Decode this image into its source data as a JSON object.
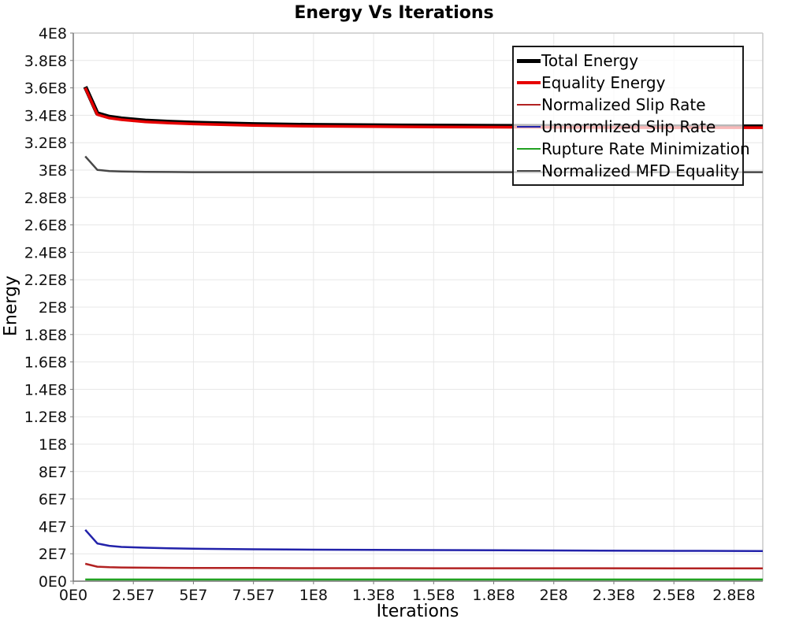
{
  "chart_data": {
    "type": "line",
    "title": "Energy Vs Iterations",
    "xlabel": "Iterations",
    "ylabel": "Energy",
    "xlim": [
      0,
      287000000.0
    ],
    "ylim": [
      0,
      400000000.0
    ],
    "grid": true,
    "legend_position": "top-right",
    "colors": {
      "background": "#ffffff",
      "gridline": "#e7e7e7",
      "axis": "#777777",
      "outer_border": "#c8c8c8",
      "legend_border": "#1a1a1a"
    },
    "x_ticks": {
      "values": [
        0,
        25000000.0,
        50000000.0,
        75000000.0,
        100000000.0,
        125000000.0,
        150000000.0,
        175000000.0,
        200000000.0,
        225000000.0,
        250000000.0,
        275000000.0
      ],
      "labels": [
        "0E0",
        "2.5E7",
        "5E7",
        "7.5E7",
        "1E8",
        "1.3E8",
        "1.5E8",
        "1.8E8",
        "2E8",
        "2.3E8",
        "2.5E8",
        "2.8E8"
      ]
    },
    "y_ticks": {
      "values": [
        0,
        20000000.0,
        40000000.0,
        60000000.0,
        80000000.0,
        100000000.0,
        120000000.0,
        140000000.0,
        160000000.0,
        180000000.0,
        200000000.0,
        220000000.0,
        240000000.0,
        260000000.0,
        280000000.0,
        300000000.0,
        320000000.0,
        340000000.0,
        360000000.0,
        380000000.0,
        400000000.0
      ],
      "labels": [
        "0E0",
        "2E7",
        "4E7",
        "6E7",
        "8E7",
        "1E8",
        "1.2E8",
        "1.4E8",
        "1.6E8",
        "1.8E8",
        "2E8",
        "2.2E8",
        "2.4E8",
        "2.6E8",
        "2.8E8",
        "3E8",
        "3.2E8",
        "3.4E8",
        "3.6E8",
        "3.8E8",
        "4E8"
      ]
    },
    "x": [
      5000000.0,
      10000000.0,
      15000000.0,
      20000000.0,
      30000000.0,
      40000000.0,
      50000000.0,
      75000000.0,
      100000000.0,
      125000000.0,
      150000000.0,
      200000000.0,
      250000000.0,
      287000000.0
    ],
    "series": [
      {
        "name": "Total Energy",
        "color": "#000000",
        "stroke_width": 5.5,
        "values": [
          360800000.0,
          341300000.0,
          338800000.0,
          337600000.0,
          336000000.0,
          335100000.0,
          334500000.0,
          333400000.0,
          332800000.0,
          332500000.0,
          332300000.0,
          332000000.0,
          331800000.0,
          331800000.0
        ]
      },
      {
        "name": "Equality Energy",
        "color": "#e60000",
        "stroke_width": 3.5,
        "values": [
          360000000.0,
          340500000.0,
          338000000.0,
          336800000.0,
          335200000.0,
          334300000.0,
          333700000.0,
          332600000.0,
          332000000.0,
          331700000.0,
          331500000.0,
          331200000.0,
          331000000.0,
          331000000.0
        ]
      },
      {
        "name": "Normalized Slip Rate",
        "color": "#b22222",
        "stroke_width": 2.5,
        "values": [
          12700000.0,
          10600000.0,
          10200000.0,
          10000000.0,
          9800000.0,
          9700000.0,
          9600000.0,
          9600000.0,
          9500000.0,
          9500000.0,
          9400000.0,
          9400000.0,
          9300000.0,
          9300000.0
        ]
      },
      {
        "name": "Unnormlized Slip Rate",
        "color": "#2222aa",
        "stroke_width": 2.5,
        "values": [
          37500000.0,
          27500000.0,
          25800000.0,
          25000000.0,
          24400000.0,
          24000000.0,
          23700000.0,
          23300000.0,
          23000000.0,
          22800000.0,
          22700000.0,
          22400000.0,
          22100000.0,
          22000000.0
        ]
      },
      {
        "name": "Rupture Rate Minimization",
        "color": "#21a121",
        "stroke_width": 2.5,
        "values": [
          1200000.0,
          1200000.0,
          1200000.0,
          1200000.0,
          1200000.0,
          1200000.0,
          1200000.0,
          1200000.0,
          1200000.0,
          1200000.0,
          1200000.0,
          1200000.0,
          1200000.0,
          1200000.0
        ]
      },
      {
        "name": "Normalized MFD Equality",
        "color": "#474747",
        "stroke_width": 2.5,
        "values": [
          310000000.0,
          300200000.0,
          299300000.0,
          299000000.0,
          298700000.0,
          298600000.0,
          298500000.0,
          298500000.0,
          298500000.0,
          298500000.0,
          298500000.0,
          298500000.0,
          298500000.0,
          298500000.0
        ]
      }
    ]
  }
}
